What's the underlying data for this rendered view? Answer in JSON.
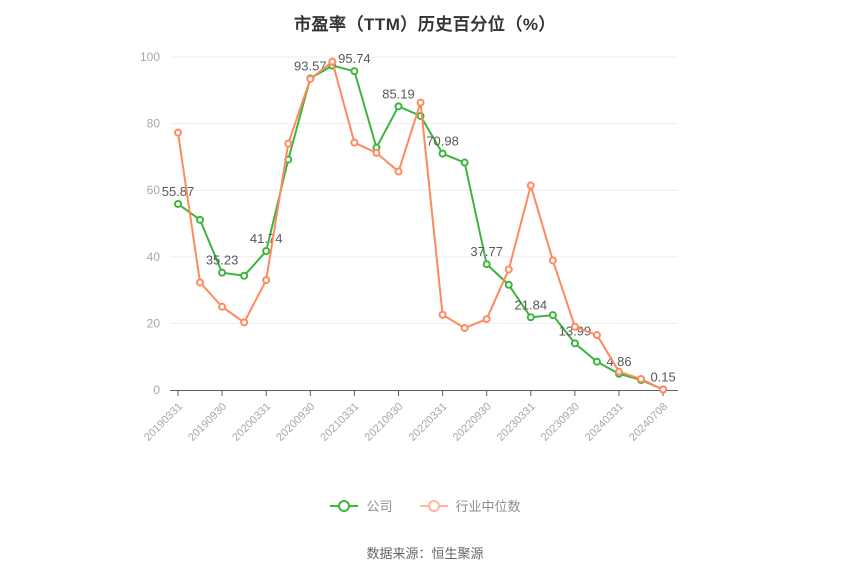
{
  "chart_data": {
    "type": "line",
    "title": "市盈率（TTM）历史百分位（%）",
    "source": "数据来源：恒生聚源",
    "ylim": [
      0,
      100
    ],
    "y_ticks": [
      0,
      20,
      40,
      60,
      80,
      100
    ],
    "grid": true,
    "legend_position": "bottom",
    "x_tick_labels": [
      "20190331",
      "20190930",
      "20200331",
      "20200930",
      "20210331",
      "20210930",
      "20220331",
      "20220930",
      "20230331",
      "20230930",
      "20240331",
      "20240708"
    ],
    "series": [
      {
        "name": "公司",
        "color": "#3db53d",
        "legend_color": "#3db53d",
        "values": [
          55.87,
          51.1,
          35.23,
          34.3,
          41.74,
          69.2,
          93.57,
          97.4,
          95.74,
          72.8,
          85.19,
          82.3,
          70.98,
          68.3,
          37.77,
          31.6,
          21.84,
          22.5,
          13.99,
          8.5,
          4.86,
          3.0,
          0.15
        ]
      },
      {
        "name": "行业中位数",
        "color": "#ff8a5e",
        "legend_color": "#ffb5a1",
        "values": [
          77.3,
          32.3,
          25.0,
          20.3,
          33.0,
          74.0,
          93.4,
          98.6,
          74.3,
          71.2,
          65.6,
          86.3,
          22.6,
          18.6,
          21.3,
          36.2,
          61.4,
          38.9,
          19.0,
          16.5,
          5.5,
          3.3,
          0.15
        ]
      }
    ],
    "point_labels": [
      {
        "i": 0,
        "text": "55.87"
      },
      {
        "i": 2,
        "text": "35.23"
      },
      {
        "i": 4,
        "text": "41.74"
      },
      {
        "i": 6,
        "text": "93.57"
      },
      {
        "i": 8,
        "text": "95.74"
      },
      {
        "i": 10,
        "text": "85.19"
      },
      {
        "i": 12,
        "text": "70.98"
      },
      {
        "i": 14,
        "text": "37.77"
      },
      {
        "i": 16,
        "text": "21.84"
      },
      {
        "i": 18,
        "text": "13.99"
      },
      {
        "i": 20,
        "text": "4.86"
      },
      {
        "i": 22,
        "text": "0.15"
      }
    ],
    "colors": {
      "grid_line": "#ebedf5",
      "axis_line": "#5c5f66",
      "tick_label": "#a4a7ad",
      "data_label": "#58595c",
      "title": "#333333"
    }
  }
}
